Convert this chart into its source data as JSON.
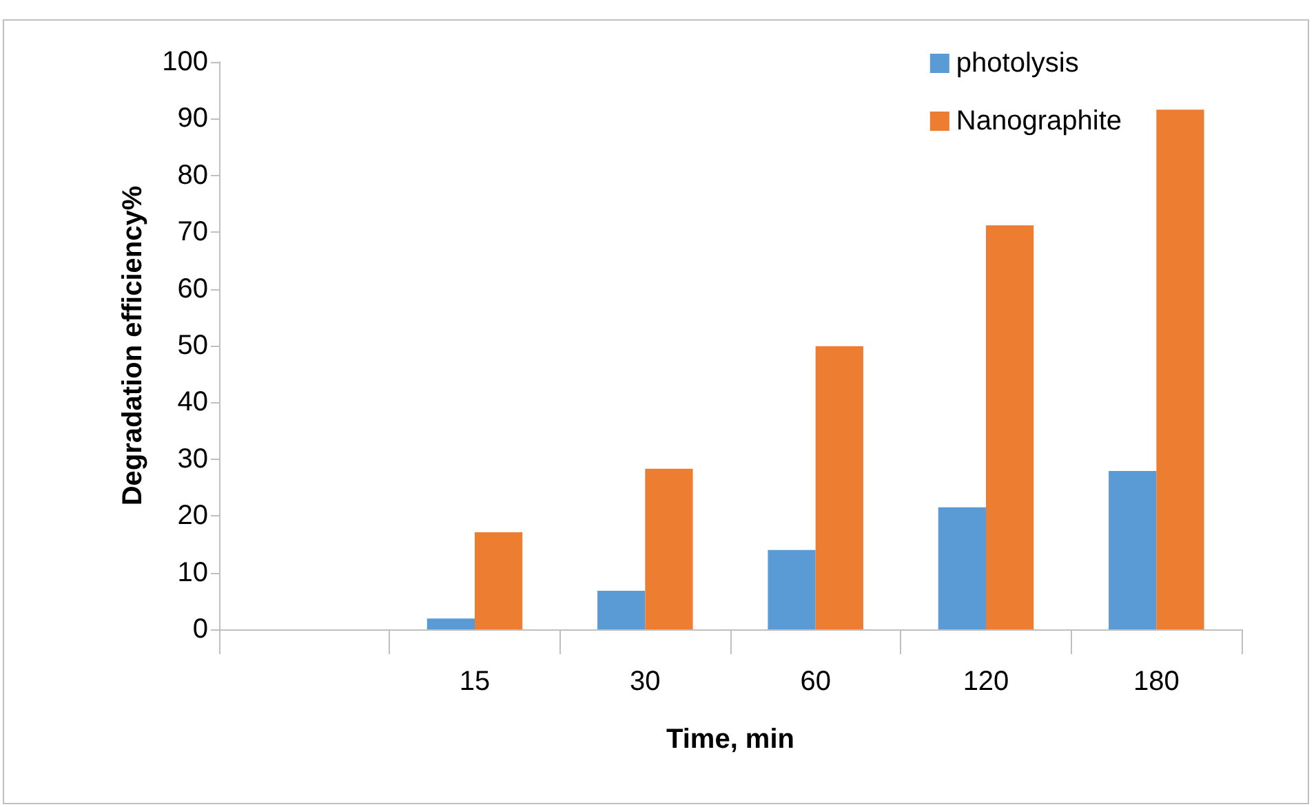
{
  "chart_data": {
    "type": "bar",
    "xlabel": "Time, min",
    "ylabel": "Degradation efficiency%",
    "categories": [
      null,
      "15",
      "30",
      "60",
      "120",
      "180"
    ],
    "series": [
      {
        "name": "photolysis",
        "color": "#5b9bd5",
        "values": [
          null,
          1.9,
          6.8,
          14,
          21.5,
          27.9
        ]
      },
      {
        "name": "Nanographite",
        "color": "#ed7d31",
        "values": [
          null,
          17.1,
          28.3,
          49.9,
          71.2,
          91.6
        ]
      }
    ],
    "ylim": [
      0,
      100
    ],
    "yticks": [
      0,
      10,
      20,
      30,
      40,
      50,
      60,
      70,
      80,
      90,
      100
    ],
    "grid": false,
    "legend": "top right"
  }
}
